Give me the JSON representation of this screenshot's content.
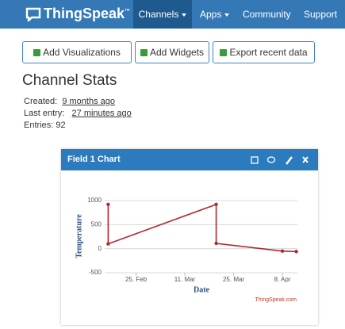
{
  "nav": {
    "brand": "ThingSpeak",
    "trademark": "™",
    "items": [
      "Channels",
      "Apps",
      "Community",
      "Support"
    ]
  },
  "buttons": [
    "Add Visualizations",
    "Add Widgets",
    "Export recent data"
  ],
  "stats": {
    "title": "Channel Stats",
    "created_label": "Created:",
    "created": "9 months ago",
    "last_label": "Last entry:",
    "last": "27 minutes ago",
    "entries_label": "Entries:",
    "entries": 92
  },
  "widget": {
    "title": "Field 1 Chart"
  },
  "chart_data": {
    "type": "line",
    "x_label": "Date",
    "y_label": "Temperature",
    "credit": "ThingSpeak.com",
    "x": [
      "17. Feb",
      "17. Feb",
      "20. Mar",
      "20. Mar",
      "8. Apr",
      "12. Apr"
    ],
    "series": [
      {
        "color": "#b3262f",
        "values": [
          920,
          100,
          920,
          110,
          -50,
          -60
        ]
      }
    ],
    "xlim": [
      "16. Feb",
      "13. Apr"
    ],
    "xticks": [
      "25. Feb",
      "11. Mar",
      "25. Mar",
      "8. Apr"
    ],
    "ylim": [
      -500,
      1000
    ],
    "yticks": [
      -500,
      0,
      500,
      1000
    ],
    "grid": true
  }
}
